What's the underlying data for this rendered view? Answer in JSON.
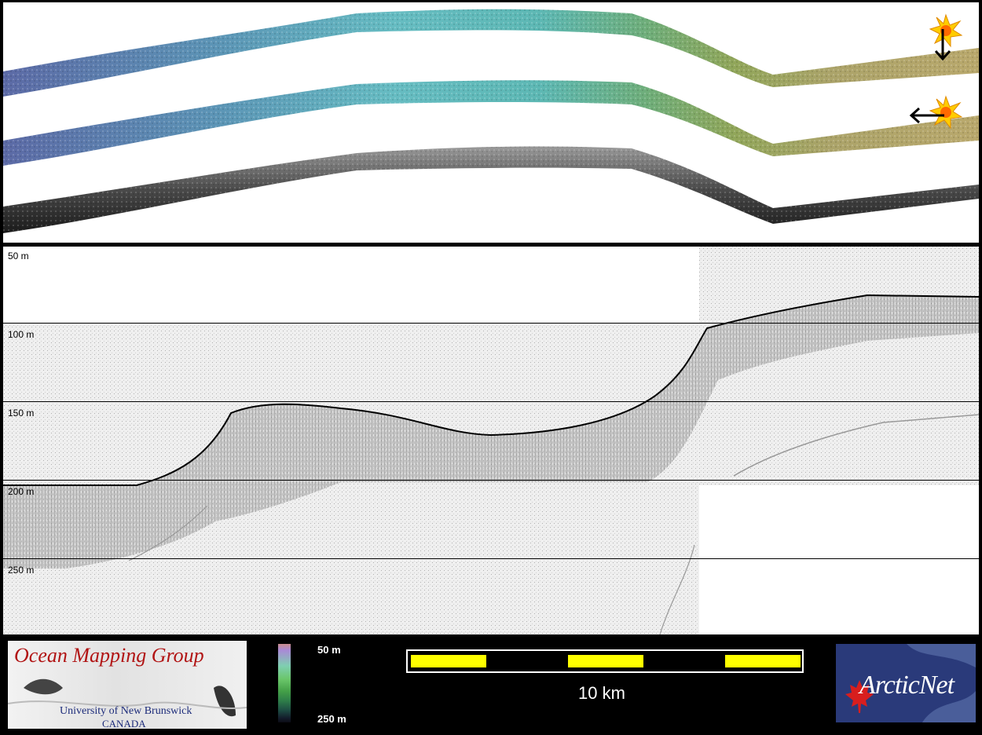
{
  "profile": {
    "depth_labels": [
      "50 m",
      "100 m",
      "150 m",
      "200 m",
      "250 m"
    ]
  },
  "legend": {
    "colorbar": {
      "top_label": "50 m",
      "bottom_label": "250 m"
    },
    "scale_bar_label": "10 km",
    "logos": {
      "ocean_mapping": {
        "title": "Ocean Mapping Group",
        "subtitle": "University of New Brunswick",
        "country": "CANADA"
      },
      "arcticnet": {
        "text": "ArcticNet"
      }
    }
  },
  "colors": {
    "scale_bar_fill": "#ffff00",
    "sun_icon": "#ffcc00",
    "logo_red": "#b11414",
    "logo_navy": "#1c2b7a"
  },
  "icons": [
    "sun-icon",
    "arrow-down-icon",
    "arrow-left-icon",
    "maple-leaf-icon"
  ]
}
